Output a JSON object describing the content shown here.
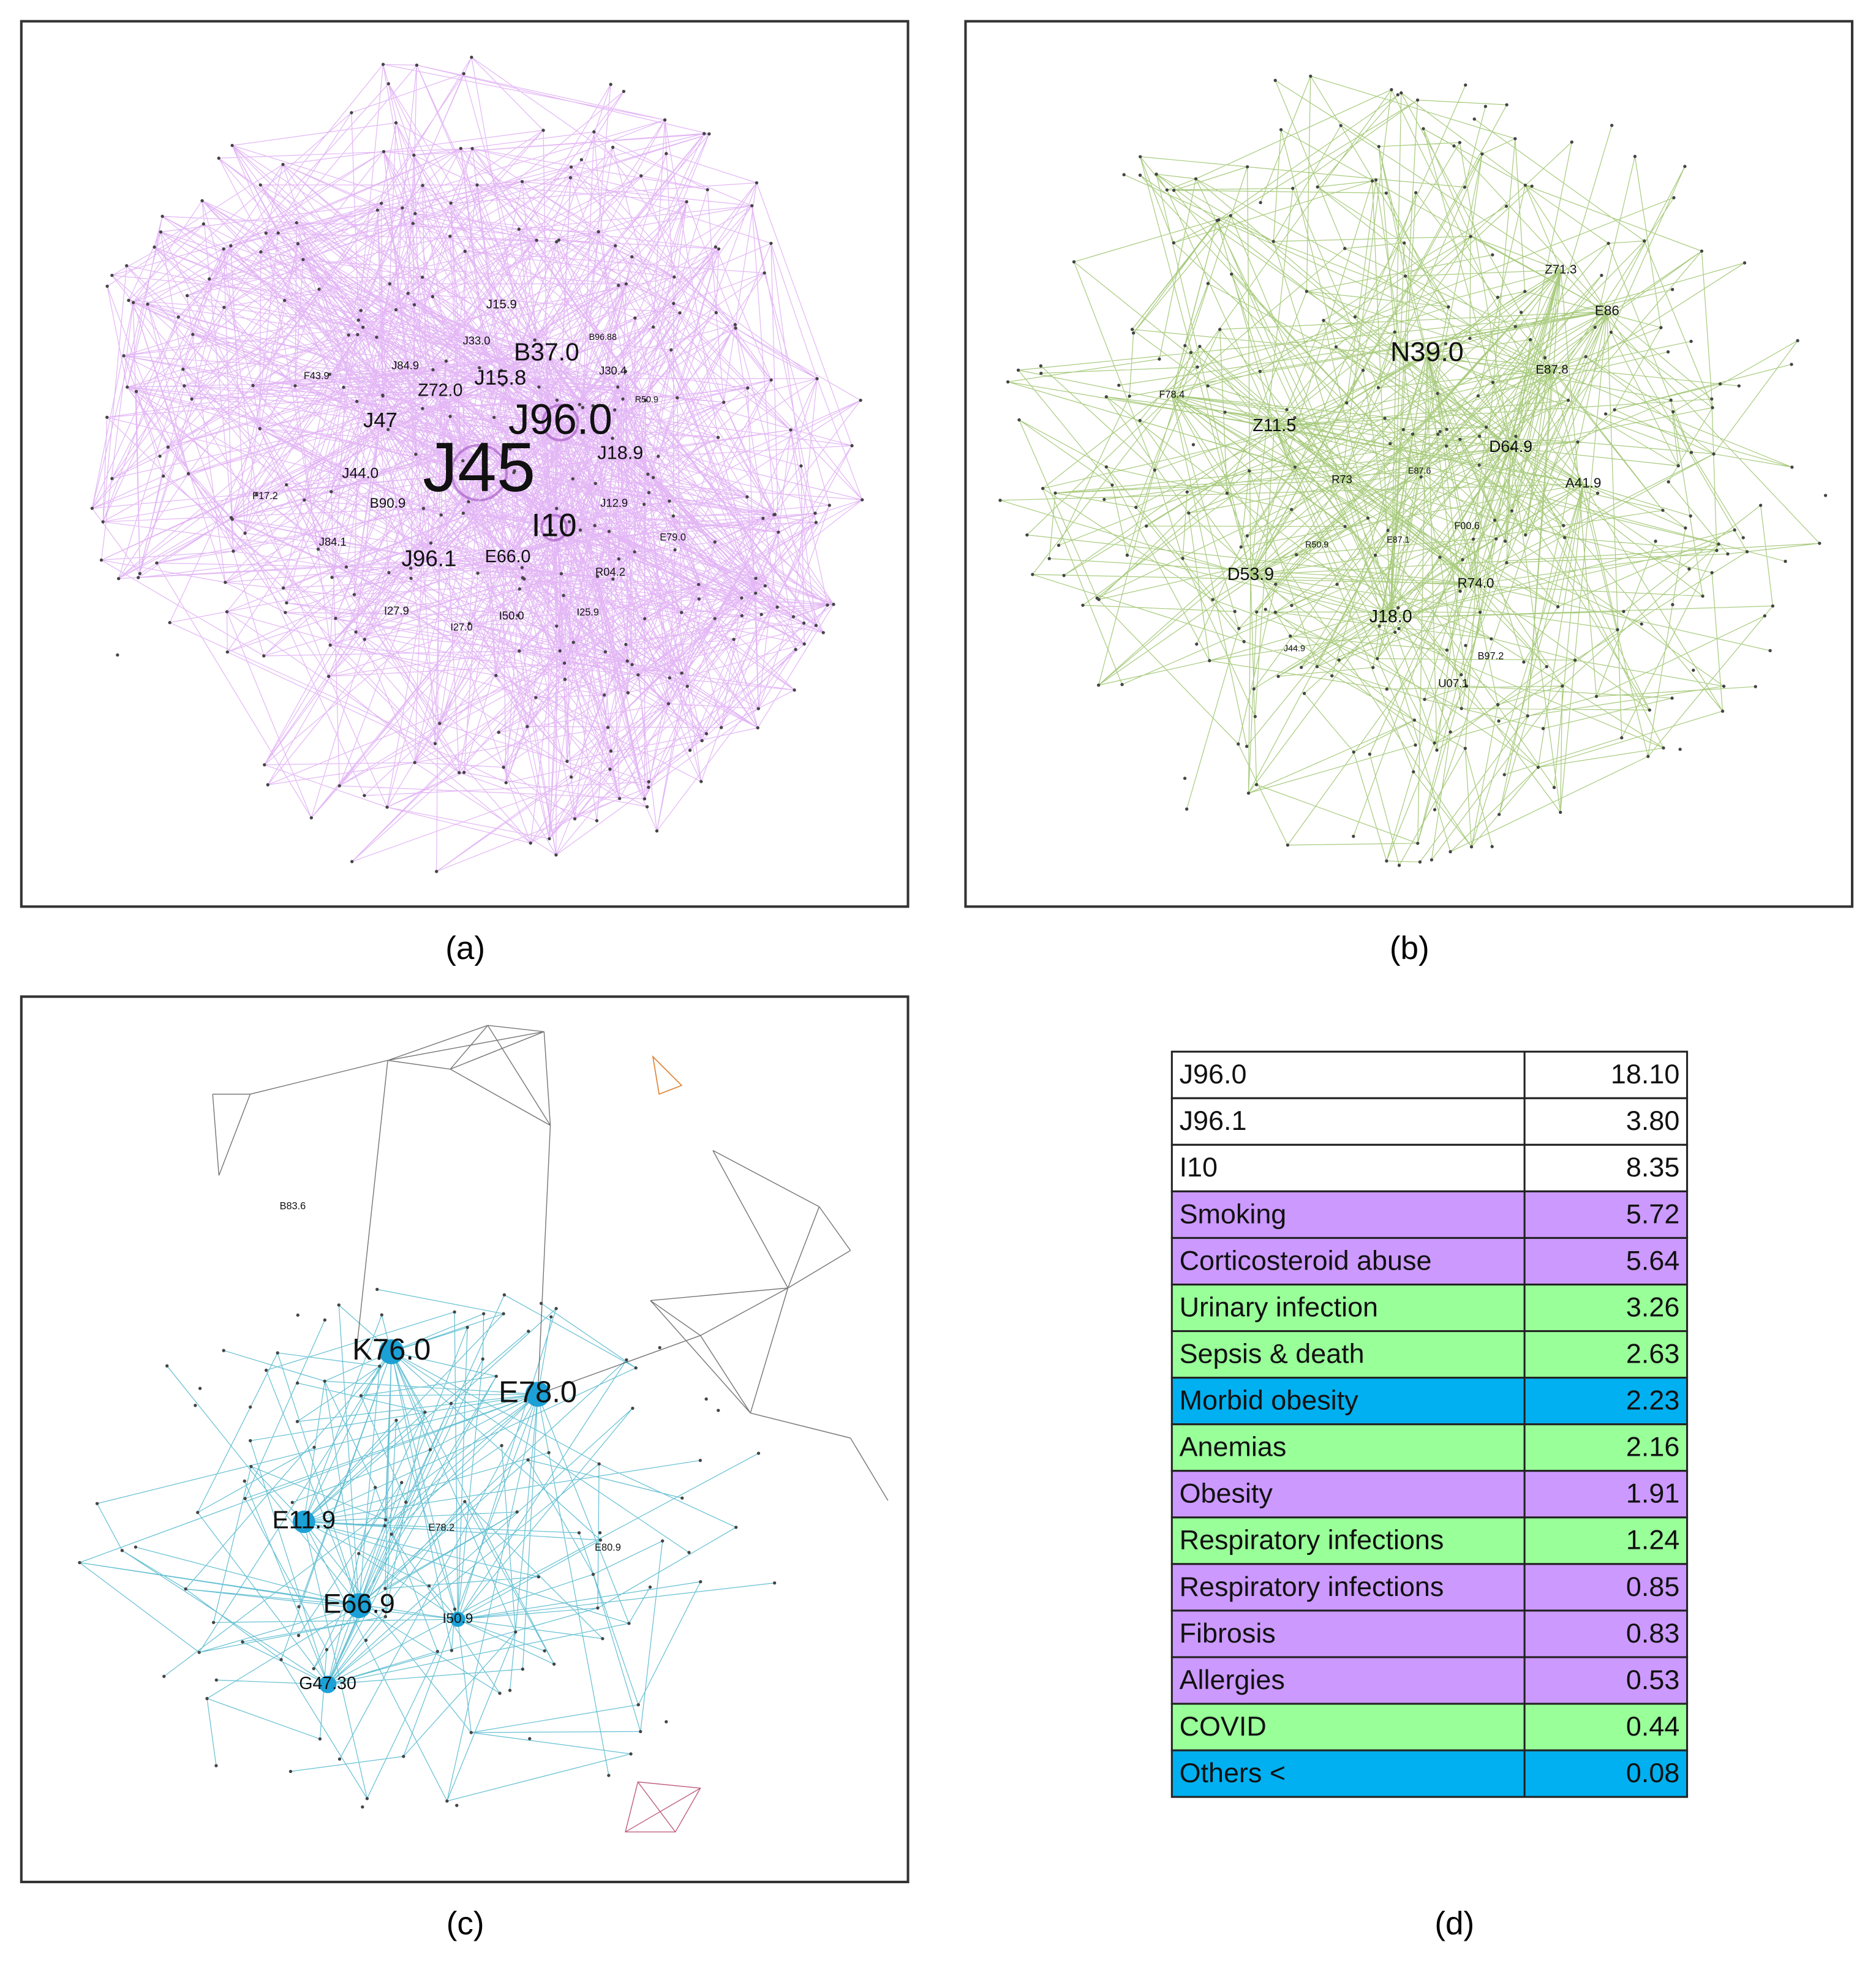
{
  "panels": [
    {
      "caption": "(a)",
      "nodes": [
        "J45",
        "J96.0",
        "B37.0",
        "J15.8",
        "Z72.0",
        "J47",
        "J18.9",
        "I10",
        "J96.1",
        "E66.0",
        "J44.0",
        "B90.9",
        "J15.9",
        "J33.0",
        "J84.9",
        "J30.4",
        "J12.9",
        "E79.0",
        "R04.2",
        "I27.9",
        "I27.0",
        "I50.0",
        "I25.9",
        "J84.1",
        "F17.2",
        "F43.9",
        "B96.88",
        "R50.9"
      ]
    },
    {
      "caption": "(b)",
      "nodes": [
        "N39.0",
        "Z11.5",
        "D64.9",
        "A41.9",
        "E87.8",
        "Z71.3",
        "E86",
        "F78.4",
        "R73",
        "E87.6",
        "D53.9",
        "R74.0",
        "J18.0",
        "F00.6",
        "R50.9",
        "E87.1",
        "U07.1",
        "B97.2",
        "J44.9"
      ]
    },
    {
      "caption": "(c)",
      "nodes": [
        "K76.0",
        "E78.0",
        "E11.9",
        "E66.9",
        "G47.30",
        "I50.9",
        "B83.6",
        "E78.2",
        "E80.9"
      ]
    }
  ],
  "table": {
    "caption": "(d)",
    "rows": [
      {
        "cells": [
          "J96.0",
          "18.10"
        ],
        "color": "#ffffff"
      },
      {
        "cells": [
          "J96.1",
          "3.80"
        ],
        "color": "#ffffff"
      },
      {
        "cells": [
          "I10",
          "8.35"
        ],
        "color": "#ffffff"
      },
      {
        "cells": [
          "Smoking",
          "5.72"
        ],
        "color": "#cc99ff"
      },
      {
        "cells": [
          "Corticosteroid abuse",
          "5.64"
        ],
        "color": "#cc99ff"
      },
      {
        "cells": [
          "Urinary infection",
          "3.26"
        ],
        "color": "#99ff99"
      },
      {
        "cells": [
          "Sepsis & death",
          "2.63"
        ],
        "color": "#99ff99"
      },
      {
        "cells": [
          "Morbid obesity",
          "2.23"
        ],
        "color": "#00b0f0"
      },
      {
        "cells": [
          "Anemias",
          "2.16"
        ],
        "color": "#99ff99"
      },
      {
        "cells": [
          "Obesity",
          "1.91"
        ],
        "color": "#cc99ff"
      },
      {
        "cells": [
          "Respiratory infections",
          "1.24"
        ],
        "color": "#99ff99"
      },
      {
        "cells": [
          "Respiratory infections",
          "0.85"
        ],
        "color": "#cc99ff"
      },
      {
        "cells": [
          "Fibrosis",
          "0.83"
        ],
        "color": "#cc99ff"
      },
      {
        "cells": [
          "Allergies",
          "0.53"
        ],
        "color": "#cc99ff"
      },
      {
        "cells": [
          "COVID",
          "0.44"
        ],
        "color": "#99ff99"
      },
      {
        "cells": [
          "Others <",
          "0.08"
        ],
        "color": "#00b0f0"
      }
    ]
  }
}
